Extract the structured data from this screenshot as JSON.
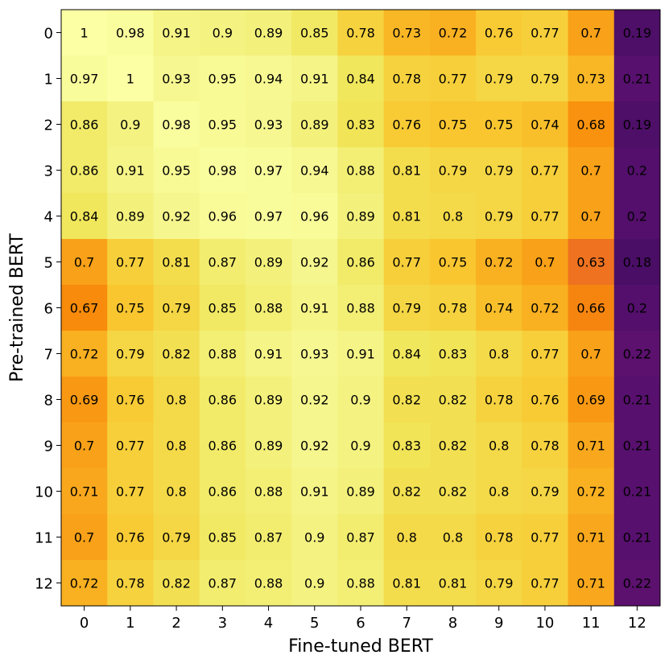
{
  "chart_data": {
    "type": "heatmap",
    "colormap": "inferno",
    "xlabel": "Fine-tuned BERT",
    "ylabel": "Pre-trained BERT",
    "x_categories": [
      "0",
      "1",
      "2",
      "3",
      "4",
      "5",
      "6",
      "7",
      "8",
      "9",
      "10",
      "11",
      "12"
    ],
    "y_categories": [
      "0",
      "1",
      "2",
      "3",
      "4",
      "5",
      "6",
      "7",
      "8",
      "9",
      "10",
      "11",
      "12"
    ],
    "values": [
      [
        1.0,
        0.98,
        0.91,
        0.9,
        0.89,
        0.85,
        0.78,
        0.73,
        0.72,
        0.76,
        0.77,
        0.7,
        0.19
      ],
      [
        0.97,
        1.0,
        0.93,
        0.95,
        0.94,
        0.91,
        0.84,
        0.78,
        0.77,
        0.79,
        0.79,
        0.73,
        0.21
      ],
      [
        0.86,
        0.9,
        0.98,
        0.95,
        0.93,
        0.89,
        0.83,
        0.76,
        0.75,
        0.75,
        0.74,
        0.68,
        0.19
      ],
      [
        0.86,
        0.91,
        0.95,
        0.98,
        0.97,
        0.94,
        0.88,
        0.81,
        0.79,
        0.79,
        0.77,
        0.7,
        0.2
      ],
      [
        0.84,
        0.89,
        0.92,
        0.96,
        0.97,
        0.96,
        0.89,
        0.81,
        0.8,
        0.79,
        0.77,
        0.7,
        0.2
      ],
      [
        0.7,
        0.77,
        0.81,
        0.87,
        0.89,
        0.92,
        0.86,
        0.77,
        0.75,
        0.72,
        0.7,
        0.63,
        0.18
      ],
      [
        0.67,
        0.75,
        0.79,
        0.85,
        0.88,
        0.91,
        0.88,
        0.79,
        0.78,
        0.74,
        0.72,
        0.66,
        0.2
      ],
      [
        0.72,
        0.79,
        0.82,
        0.88,
        0.91,
        0.93,
        0.91,
        0.84,
        0.83,
        0.8,
        0.77,
        0.7,
        0.22
      ],
      [
        0.69,
        0.76,
        0.8,
        0.86,
        0.89,
        0.92,
        0.9,
        0.82,
        0.82,
        0.78,
        0.76,
        0.69,
        0.21
      ],
      [
        0.7,
        0.77,
        0.8,
        0.86,
        0.89,
        0.92,
        0.9,
        0.83,
        0.82,
        0.8,
        0.78,
        0.71,
        0.21
      ],
      [
        0.71,
        0.77,
        0.8,
        0.86,
        0.88,
        0.91,
        0.89,
        0.82,
        0.82,
        0.8,
        0.79,
        0.72,
        0.21
      ],
      [
        0.7,
        0.76,
        0.79,
        0.85,
        0.87,
        0.9,
        0.87,
        0.8,
        0.8,
        0.78,
        0.77,
        0.71,
        0.21
      ],
      [
        0.72,
        0.78,
        0.82,
        0.87,
        0.88,
        0.9,
        0.88,
        0.81,
        0.81,
        0.79,
        0.77,
        0.71,
        0.22
      ]
    ]
  }
}
